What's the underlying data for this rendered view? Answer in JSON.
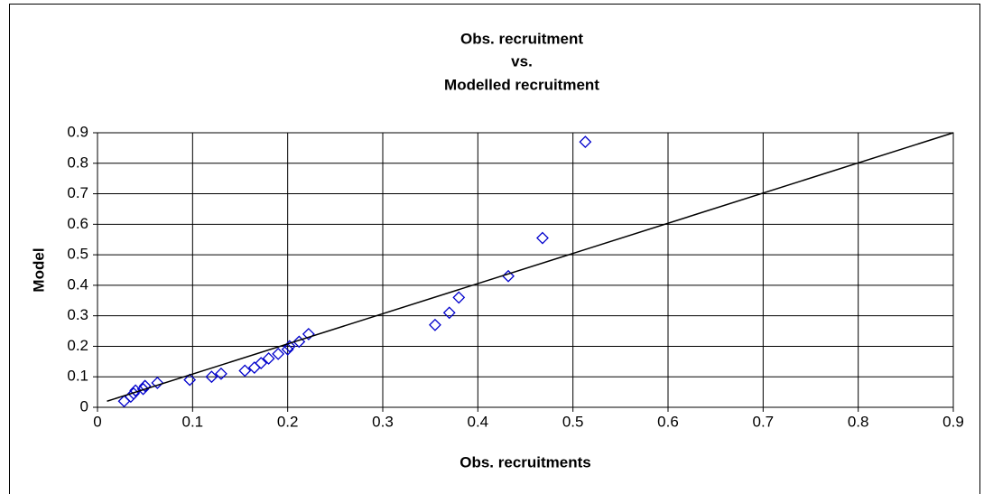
{
  "chart_data": {
    "type": "scatter",
    "title": [
      "Obs. recruitment",
      "vs.",
      "Modelled recruitment"
    ],
    "x_label": "Obs. recruitments",
    "y_label": "Model",
    "xlim": [
      0,
      0.9
    ],
    "ylim": [
      0,
      0.9
    ],
    "xticks": [
      0,
      0.1,
      0.2,
      0.3,
      0.4,
      0.5,
      0.6,
      0.7,
      0.8,
      0.9
    ],
    "yticks": [
      0,
      0.1,
      0.2,
      0.3,
      0.4,
      0.5,
      0.6,
      0.7,
      0.8,
      0.9
    ],
    "grid": true,
    "series": [
      {
        "color": "#0000cc",
        "marker": "diamond",
        "x": [
          0.028,
          0.035,
          0.038,
          0.04,
          0.048,
          0.05,
          0.063,
          0.097,
          0.12,
          0.13,
          0.155,
          0.165,
          0.172,
          0.18,
          0.19,
          0.2,
          0.202,
          0.212,
          0.222,
          0.355,
          0.37,
          0.38,
          0.432,
          0.468,
          0.513
        ],
        "values": [
          0.02,
          0.035,
          0.045,
          0.055,
          0.06,
          0.07,
          0.08,
          0.09,
          0.1,
          0.11,
          0.12,
          0.13,
          0.145,
          0.16,
          0.175,
          0.19,
          0.2,
          0.215,
          0.24,
          0.27,
          0.31,
          0.36,
          0.43,
          0.555,
          0.87
        ]
      },
      {
        "color": "#000000",
        "marker": "line",
        "x": [
          0.01,
          0.9
        ],
        "values": [
          0.02,
          0.9
        ]
      }
    ]
  }
}
